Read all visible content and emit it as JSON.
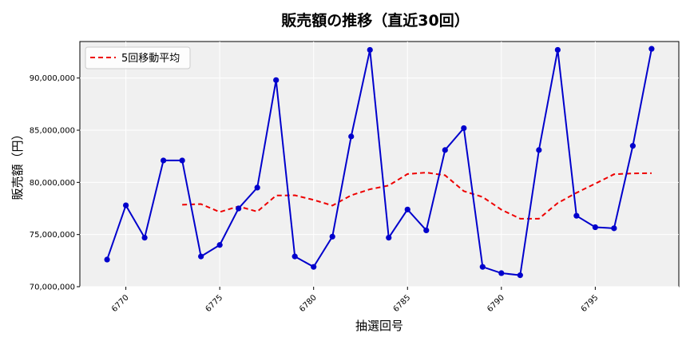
{
  "chart_data": {
    "type": "line",
    "title": "販売額の推移（直近30回）",
    "xlabel": "抽選回号",
    "ylabel": "販売額（円）",
    "xlim": [
      6767.55,
      6799.45
    ],
    "ylim": [
      70000000,
      93500000
    ],
    "x_ticks": [
      6770,
      6775,
      6780,
      6785,
      6790,
      6795
    ],
    "x_tick_labels": [
      "6770",
      "6775",
      "6780",
      "6785",
      "6790",
      "6795"
    ],
    "y_ticks": [
      70000000,
      75000000,
      80000000,
      85000000,
      90000000
    ],
    "y_tick_labels": [
      "70,000,000",
      "75,000,000",
      "80,000,000",
      "85,000,000",
      "90,000,000"
    ],
    "grid": true,
    "legend_position": "top-left",
    "x": [
      6769,
      6770,
      6771,
      6772,
      6773,
      6774,
      6775,
      6776,
      6777,
      6778,
      6779,
      6780,
      6781,
      6782,
      6783,
      6784,
      6785,
      6786,
      6787,
      6788,
      6789,
      6790,
      6791,
      6792,
      6793,
      6794,
      6795,
      6796,
      6797,
      6798
    ],
    "series": [
      {
        "name": "",
        "color": "#0000cc",
        "style": "solid-markers",
        "values": [
          72600000,
          77800000,
          74700000,
          82100000,
          82100000,
          72900000,
          74000000,
          77500000,
          79500000,
          89800000,
          72900000,
          71900000,
          74800000,
          84400000,
          92700000,
          74700000,
          77400000,
          75400000,
          83100000,
          85200000,
          71900000,
          71300000,
          71100000,
          83100000,
          92700000,
          76800000,
          75700000,
          75600000,
          83500000,
          92800000
        ]
      },
      {
        "name": "5回移動平均",
        "color": "#ee0000",
        "style": "dashed",
        "values": [
          null,
          null,
          null,
          null,
          77860000,
          77920000,
          77160000,
          77700000,
          77200000,
          78740000,
          78760000,
          78320000,
          77780000,
          78760000,
          79340000,
          79700000,
          80800000,
          80940000,
          80680000,
          79160000,
          78600000,
          77380000,
          76520000,
          76520000,
          78020000,
          79000000,
          79880000,
          80780000,
          80860000,
          80880000
        ]
      }
    ]
  }
}
